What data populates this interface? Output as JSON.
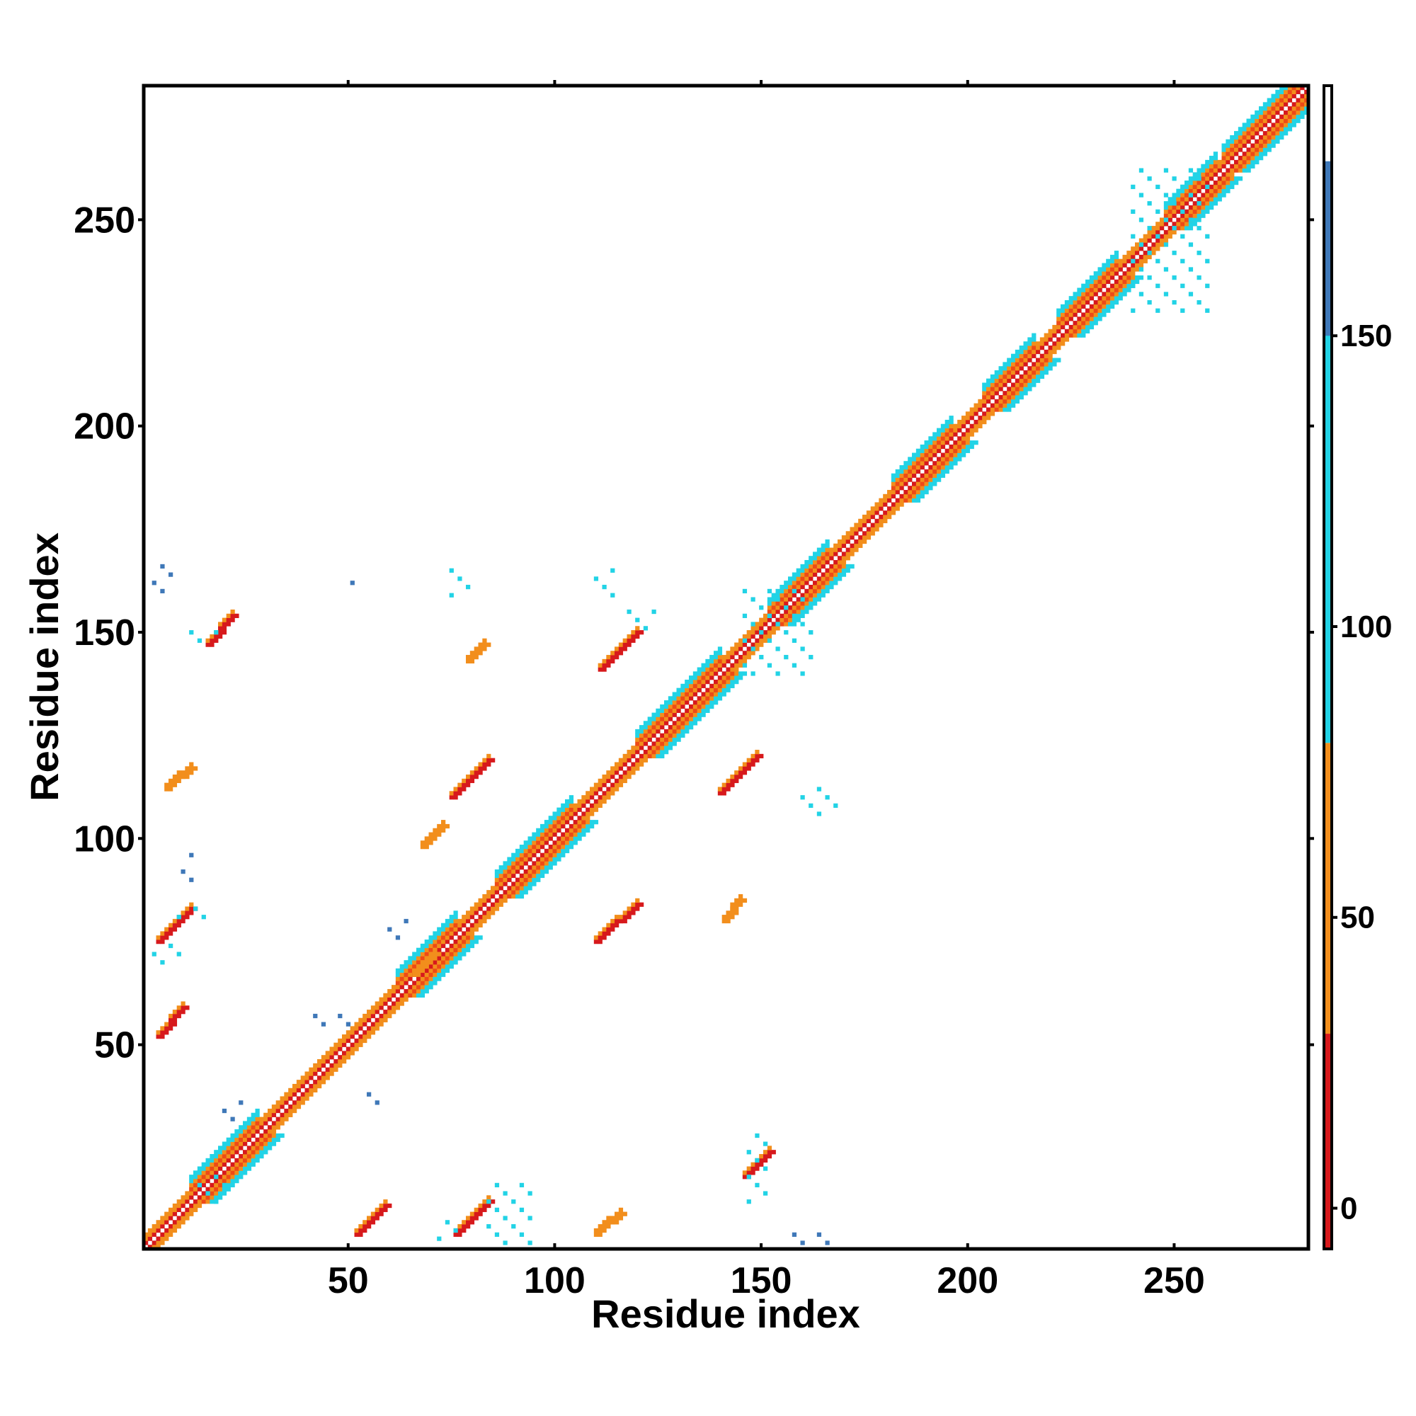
{
  "chart_data": {
    "type": "heatmap",
    "title": "",
    "xlabel": "Residue index",
    "ylabel": "Residue index",
    "xlim": [
      1,
      282
    ],
    "ylim": [
      1,
      282
    ],
    "x_ticks": [
      50,
      100,
      150,
      200,
      250
    ],
    "y_ticks": [
      50,
      100,
      150,
      200,
      250
    ],
    "grid": false,
    "colorbar": {
      "ticks": [
        0,
        50,
        100,
        150
      ],
      "range": [
        -7,
        193
      ],
      "bands": [
        {
          "from": -7,
          "to": 30,
          "color": "#d7191c"
        },
        {
          "from": 30,
          "to": 80,
          "color": "#f28e1c"
        },
        {
          "from": 80,
          "to": 180,
          "color": "#22d3e6"
        },
        {
          "from": 180,
          "to": 193,
          "color": "#ffffff"
        }
      ],
      "extra_stops": [
        {
          "from": 150,
          "to": 180,
          "color": "#3f78b8"
        }
      ]
    },
    "colors": {
      "red": "#d7191c",
      "red_orange": "#ee4a16",
      "orange": "#f28e1c",
      "cyan": "#22d3e6",
      "blue": "#3f78b8",
      "white": "#ffffff"
    },
    "diagonal_band": {
      "from": 1,
      "to": 282,
      "pattern": [
        "white",
        "red",
        "orange",
        "orange",
        "cyan"
      ],
      "helix_segments": [
        [
          12,
          28
        ],
        [
          62,
          76
        ],
        [
          86,
          104
        ],
        [
          120,
          140
        ],
        [
          152,
          166
        ],
        [
          182,
          196
        ],
        [
          204,
          216
        ],
        [
          222,
          236
        ],
        [
          248,
          260
        ],
        [
          262,
          280
        ]
      ]
    },
    "off_diagonal_contacts": [
      {
        "x": [
          4,
          12
        ],
        "y": [
          75,
          83
        ],
        "value": 5
      },
      {
        "x": [
          4,
          10
        ],
        "y": [
          52,
          59
        ],
        "value": 5
      },
      {
        "x": [
          52,
          59
        ],
        "y": [
          4,
          11
        ],
        "value": 10
      },
      {
        "x": [
          76,
          84
        ],
        "y": [
          4,
          12
        ],
        "value": 10
      },
      {
        "x": [
          75,
          84
        ],
        "y": [
          110,
          119
        ],
        "value": 10
      },
      {
        "x": [
          110,
          120
        ],
        "y": [
          75,
          84
        ],
        "value": 10
      },
      {
        "x": [
          111,
          120
        ],
        "y": [
          141,
          150
        ],
        "value": 10
      },
      {
        "x": [
          140,
          149
        ],
        "y": [
          111,
          120
        ],
        "value": 10
      },
      {
        "x": [
          6,
          12
        ],
        "y": [
          112,
          117
        ],
        "value": 40
      },
      {
        "x": [
          110,
          116
        ],
        "y": [
          4,
          9
        ],
        "value": 40
      },
      {
        "x": [
          66,
          71
        ],
        "y": [
          67,
          72
        ],
        "value": 40
      },
      {
        "x": [
          68,
          73
        ],
        "y": [
          98,
          103
        ],
        "value": 40
      },
      {
        "x": [
          79,
          83
        ],
        "y": [
          143,
          147
        ],
        "value": 40
      },
      {
        "x": [
          141,
          145
        ],
        "y": [
          80,
          85
        ],
        "value": 40
      },
      {
        "x": [
          16,
          22
        ],
        "y": [
          147,
          154
        ],
        "value": 0
      },
      {
        "x": [
          146,
          152
        ],
        "y": [
          18,
          24
        ],
        "value": 0
      },
      {
        "x": [
          9,
          18
        ],
        "y": [
          81,
          84
        ],
        "value": 95
      },
      {
        "x": [
          3,
          9
        ],
        "y": [
          70,
          75
        ],
        "value": 95
      },
      {
        "x": [
          72,
          76
        ],
        "y": [
          3,
          7
        ],
        "value": 95
      },
      {
        "x": [
          12,
          18
        ],
        "y": [
          148,
          151
        ],
        "value": 95
      },
      {
        "x": [
          147,
          152
        ],
        "y": [
          12,
          28
        ],
        "value": 110
      },
      {
        "x": [
          118,
          124
        ],
        "y": [
          151,
          156
        ],
        "value": 95
      },
      {
        "x": [
          84,
          94
        ],
        "y": [
          2,
          16
        ],
        "value": 120
      },
      {
        "x": [
          14,
          20
        ],
        "y": [
          12,
          19
        ],
        "value": 95
      },
      {
        "x": [
          240,
          258
        ],
        "y": [
          228,
          262
        ],
        "value": 130
      },
      {
        "x": [
          146,
          162
        ],
        "y": [
          140,
          160
        ],
        "value": 120
      },
      {
        "x": [
          40,
          52
        ],
        "y": [
          55,
          58
        ],
        "value": 160
      },
      {
        "x": [
          160,
          168
        ],
        "y": [
          106,
          113
        ],
        "value": 110
      },
      {
        "x": [
          3,
          8
        ],
        "y": [
          160,
          167
        ],
        "value": 165
      },
      {
        "x": [
          51,
          54
        ],
        "y": [
          162,
          164
        ],
        "value": 165
      },
      {
        "x": [
          75,
          80
        ],
        "y": [
          159,
          166
        ],
        "value": 120
      },
      {
        "x": [
          110,
          115
        ],
        "y": [
          159,
          166
        ],
        "value": 120
      },
      {
        "x": [
          10,
          12
        ],
        "y": [
          88,
          97
        ],
        "value": 165
      },
      {
        "x": [
          60,
          64
        ],
        "y": [
          76,
          80
        ],
        "value": 150
      },
      {
        "x": [
          55,
          58
        ],
        "y": [
          36,
          38
        ],
        "value": 165
      },
      {
        "x": [
          20,
          24
        ],
        "y": [
          32,
          36
        ],
        "value": 150
      },
      {
        "x": [
          158,
          168
        ],
        "y": [
          2,
          5
        ],
        "value": 150
      }
    ]
  }
}
